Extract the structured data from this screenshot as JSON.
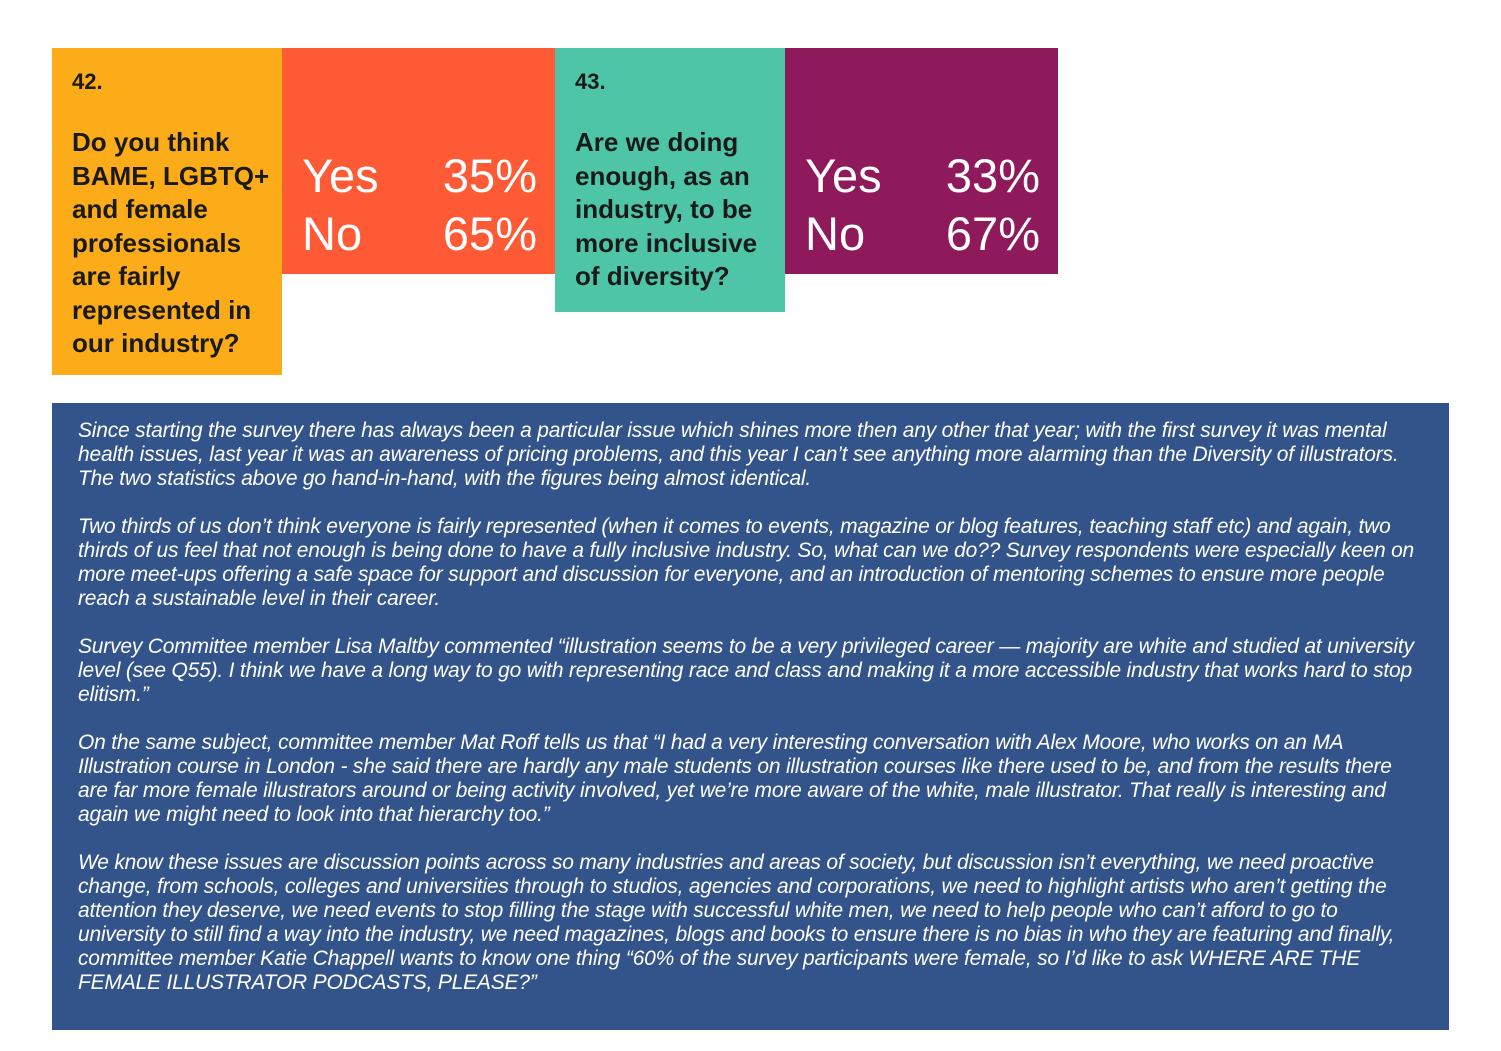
{
  "questions": [
    {
      "number": "42.",
      "text": "Do you think BAME, LGBTQ+ and female professionals are fairly represented in our industry?",
      "answers": [
        {
          "label": "Yes",
          "percent": "35%"
        },
        {
          "label": "No",
          "percent": "65%"
        }
      ],
      "colors": {
        "question_bg": "#FBAC18",
        "answer_bg": "#FE5A35"
      }
    },
    {
      "number": "43.",
      "text": "Are we doing enough, as an industry, to be more inclusive of diversity?",
      "answers": [
        {
          "label": "Yes",
          "percent": "33%"
        },
        {
          "label": "No",
          "percent": "67%"
        }
      ],
      "colors": {
        "question_bg": "#4DC5A6",
        "answer_bg": "#8E1A5C"
      }
    }
  ],
  "commentary": {
    "background": "#33548A",
    "paragraphs": [
      "Since starting the survey there has always been a particular issue which shines more then any other that year; with the first survey it was mental health issues, last year it was an awareness of pricing problems, and this year I can’t see anything more alarming than the Diversity of illustrators.  The two statistics above go hand-in-hand, with the figures being almost identical.",
      "Two thirds of us don’t think everyone is fairly represented (when it comes to events, magazine or blog features, teaching staff etc) and again, two thirds of us feel that not enough is being done to have a fully inclusive industry.  So, what can we do?? Survey respondents were especially keen on more meet-ups offering a safe space for support and discussion for everyone, and an introduction of mentoring schemes to ensure more people reach a sustainable level in their career.",
      "Survey Committee member Lisa Maltby commented “illustration seems to be a very privileged career — majority are white and studied at university level (see Q55). I think we have a long way to go with representing race and class and making it a more accessible industry that works hard to stop elitism.”",
      "On the same subject, committee member Mat Roff tells us that “I had a very interesting conversation with Alex Moore, who works on an MA Illustration course in London - she said there are hardly any male students on illustration courses like there used to be, and from the results there are far more female illustrators around or being activity involved, yet we’re more aware of the white, male illustrator. That really is interesting and again we might need to look into that hierarchy too.”",
      "We know these issues are discussion points across so many industries and areas of society, but discussion isn’t everything, we need proactive change, from schools, colleges and universities through to studios, agencies and corporations, we need to highlight artists who aren’t getting the attention they deserve, we need events to stop filling the stage with successful white men, we need to help people who can’t afford to go to university to still find a way into the industry, we need magazines, blogs and books to ensure there is no bias in who they are featuring and finally, committee member Katie Chappell wants to know one thing “60% of the survey participants were female, so I’d like to ask WHERE ARE THE FEMALE ILLUSTRATOR PODCASTS, PLEASE?”"
    ]
  }
}
